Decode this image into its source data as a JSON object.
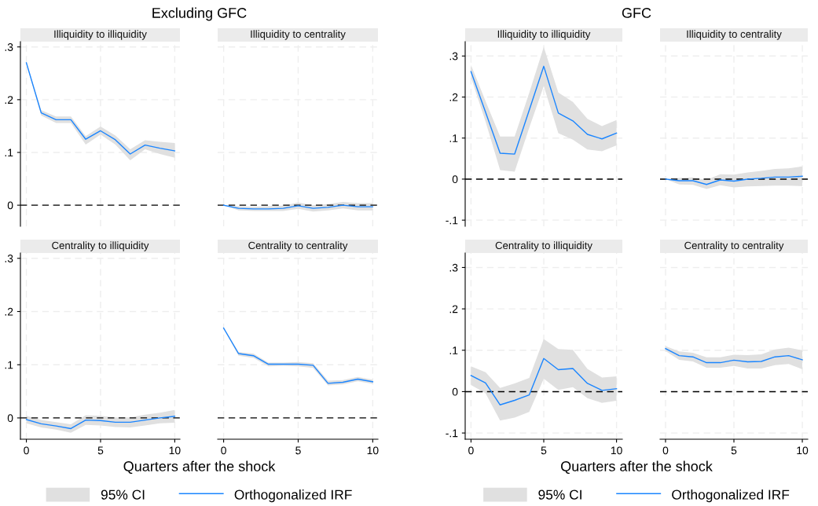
{
  "chart_data": [
    {
      "type": "line",
      "title": "Excluding GFC",
      "subtitle": "Illiquidity to illiquidity",
      "x": [
        0,
        1,
        2,
        3,
        4,
        5,
        6,
        7,
        8,
        9,
        10
      ],
      "xlim": [
        -0.4,
        10.35
      ],
      "xticks": [
        0,
        5,
        10
      ],
      "ylim": [
        -0.04,
        0.31
      ],
      "yticks": [
        {
          "value": 0,
          "label": "0"
        },
        {
          "value": 0.1,
          "label": ".1"
        },
        {
          "value": 0.2,
          "label": ".2"
        },
        {
          "value": 0.3,
          "label": ".3"
        }
      ],
      "tick_labels": "y",
      "grid": true,
      "ref_lines": [
        {
          "axis": "y",
          "value": 0,
          "color": "#000000",
          "line_style": "dashed"
        }
      ],
      "series": [
        {
          "color": "#1a85ff",
          "values": [
            0.27,
            0.175,
            0.162,
            0.162,
            0.125,
            0.141,
            0.124,
            0.097,
            0.114,
            0.108,
            0.103
          ],
          "upper": [
            0.272,
            0.18,
            0.168,
            0.168,
            0.131,
            0.149,
            0.132,
            0.106,
            0.123,
            0.12,
            0.118
          ],
          "lower": [
            0.268,
            0.17,
            0.156,
            0.156,
            0.115,
            0.134,
            0.115,
            0.085,
            0.106,
            0.097,
            0.09
          ]
        }
      ]
    },
    {
      "type": "line",
      "subtitle": "Illiquidity to centrality",
      "x": [
        0,
        1,
        2,
        3,
        4,
        5,
        6,
        7,
        8,
        9,
        10
      ],
      "xlim": [
        -0.4,
        10.35
      ],
      "xticks": [
        0,
        5,
        10
      ],
      "ylim": [
        -0.04,
        0.31
      ],
      "yticks": [
        0,
        0.1,
        0.2,
        0.3
      ],
      "tick_labels": false,
      "grid": true,
      "ref_lines": [
        {
          "axis": "y",
          "value": 0,
          "color": "#000000",
          "line_style": "dashed"
        }
      ],
      "series": [
        {
          "color": "#1a85ff",
          "values": [
            0,
            -0.006,
            -0.007,
            -0.007,
            -0.006,
            -0.001,
            -0.006,
            -0.004,
            0.0,
            -0.003,
            -0.003
          ],
          "upper": [
            0,
            -0.002,
            -0.003,
            -0.002,
            -0.001,
            0.005,
            0.0,
            0.002,
            0.006,
            0.004,
            0.004
          ],
          "lower": [
            0,
            -0.01,
            -0.011,
            -0.011,
            -0.011,
            -0.007,
            -0.012,
            -0.01,
            -0.006,
            -0.01,
            -0.01
          ]
        }
      ]
    },
    {
      "type": "line",
      "subtitle": "Centrality to illiquidity",
      "xlabel": "Quarters after the shock",
      "legend": "bottom",
      "annotations": [
        "95% CI"
      ],
      "x": [
        0,
        1,
        2,
        3,
        4,
        5,
        6,
        7,
        8,
        9,
        10
      ],
      "xlim": [
        -0.4,
        10.35
      ],
      "xticks": [
        0,
        5,
        10
      ],
      "ylim": [
        -0.04,
        0.31
      ],
      "yticks": [
        {
          "value": 0,
          "label": "0"
        },
        {
          "value": 0.1,
          "label": ".1"
        },
        {
          "value": 0.2,
          "label": ".2"
        },
        {
          "value": 0.3,
          "label": ".3"
        }
      ],
      "grid": true,
      "ref_lines": [
        {
          "axis": "y",
          "value": 0,
          "color": "#000000",
          "line_style": "dashed"
        }
      ],
      "series": [
        {
          "name": "Orthogonalized IRF",
          "color": "#1a85ff",
          "values": [
            -0.003,
            -0.011,
            -0.015,
            -0.02,
            -0.004,
            -0.005,
            -0.008,
            -0.008,
            -0.004,
            0.0,
            0.003
          ],
          "upper": [
            0.004,
            -0.004,
            -0.008,
            -0.012,
            0.005,
            0.004,
            0.001,
            0.001,
            0.006,
            0.01,
            0.015
          ],
          "lower": [
            -0.01,
            -0.018,
            -0.022,
            -0.028,
            -0.013,
            -0.014,
            -0.017,
            -0.018,
            -0.014,
            -0.01,
            -0.009
          ]
        }
      ]
    },
    {
      "type": "line",
      "subtitle": "Centrality to centrality",
      "x": [
        0,
        1,
        2,
        3,
        4,
        5,
        6,
        7,
        8,
        9,
        10
      ],
      "xlim": [
        -0.4,
        10.35
      ],
      "xticks": [
        0,
        5,
        10
      ],
      "ylim": [
        -0.04,
        0.31
      ],
      "yticks": [
        0,
        0.1,
        0.2,
        0.3
      ],
      "tick_labels": "x",
      "grid": true,
      "ref_lines": [
        {
          "axis": "y",
          "value": 0,
          "color": "#000000",
          "line_style": "dashed"
        }
      ],
      "series": [
        {
          "color": "#1a85ff",
          "values": [
            0.169,
            0.121,
            0.117,
            0.101,
            0.101,
            0.101,
            0.099,
            0.065,
            0.067,
            0.073,
            0.068
          ],
          "upper": [
            0.17,
            0.124,
            0.121,
            0.104,
            0.104,
            0.105,
            0.103,
            0.07,
            0.071,
            0.077,
            0.072
          ],
          "lower": [
            0.168,
            0.117,
            0.113,
            0.097,
            0.098,
            0.097,
            0.094,
            0.061,
            0.063,
            0.069,
            0.064
          ]
        }
      ]
    },
    {
      "type": "line",
      "title": "GFC",
      "subtitle": "Illiquidity to illiquidity",
      "x": [
        0,
        1,
        2,
        3,
        4,
        5,
        6,
        7,
        8,
        9,
        10
      ],
      "xlim": [
        -0.4,
        10.4
      ],
      "xticks": [
        0,
        5,
        10
      ],
      "ylim": [
        -0.115,
        0.335
      ],
      "yticks": [
        {
          "value": -0.1,
          "label": "-.1"
        },
        {
          "value": 0,
          "label": "0"
        },
        {
          "value": 0.1,
          "label": ".1"
        },
        {
          "value": 0.2,
          "label": ".2"
        },
        {
          "value": 0.3,
          "label": ".3"
        }
      ],
      "tick_labels": "y",
      "grid": true,
      "ref_lines": [
        {
          "axis": "y",
          "value": 0,
          "color": "#000000",
          "line_style": "dashed"
        }
      ],
      "series": [
        {
          "color": "#1a85ff",
          "values": [
            0.262,
            0.163,
            0.063,
            0.061,
            0.168,
            0.275,
            0.161,
            0.142,
            0.109,
            0.098,
            0.112
          ],
          "upper": [
            0.278,
            0.19,
            0.104,
            0.104,
            0.21,
            0.322,
            0.211,
            0.188,
            0.147,
            0.129,
            0.144
          ],
          "lower": [
            0.248,
            0.14,
            0.022,
            0.018,
            0.125,
            0.227,
            0.112,
            0.096,
            0.072,
            0.068,
            0.082
          ]
        }
      ]
    },
    {
      "type": "line",
      "subtitle": "Illiquidity to centrality",
      "x": [
        0,
        1,
        2,
        3,
        4,
        5,
        6,
        7,
        8,
        9,
        10
      ],
      "xlim": [
        -0.4,
        10.4
      ],
      "xticks": [
        0,
        5,
        10
      ],
      "ylim": [
        -0.115,
        0.335
      ],
      "yticks": [
        -0.1,
        0,
        0.1,
        0.2,
        0.3
      ],
      "tick_labels": false,
      "grid": true,
      "ref_lines": [
        {
          "axis": "y",
          "value": 0,
          "color": "#000000",
          "line_style": "dashed"
        }
      ],
      "series": [
        {
          "color": "#1a85ff",
          "values": [
            0,
            -0.004,
            -0.004,
            -0.013,
            -0.002,
            -0.005,
            0.0,
            0.002,
            0.005,
            0.005,
            0.007
          ],
          "upper": [
            0,
            0.003,
            0.004,
            -0.002,
            0.012,
            0.011,
            0.016,
            0.02,
            0.025,
            0.026,
            0.031
          ],
          "lower": [
            0,
            -0.013,
            -0.014,
            -0.024,
            -0.015,
            -0.02,
            -0.018,
            -0.017,
            -0.016,
            -0.016,
            -0.017
          ]
        }
      ]
    },
    {
      "type": "line",
      "subtitle": "Centrality to illiquidity",
      "xlabel": "Quarters after the shock",
      "legend": "bottom",
      "annotations": [
        "95% CI"
      ],
      "x": [
        0,
        1,
        2,
        3,
        4,
        5,
        6,
        7,
        8,
        9,
        10
      ],
      "xlim": [
        -0.4,
        10.4
      ],
      "xticks": [
        0,
        5,
        10
      ],
      "ylim": [
        -0.115,
        0.335
      ],
      "yticks": [
        {
          "value": -0.1,
          "label": "-.1"
        },
        {
          "value": 0,
          "label": "0"
        },
        {
          "value": 0.1,
          "label": ".1"
        },
        {
          "value": 0.2,
          "label": ".2"
        },
        {
          "value": 0.3,
          "label": ".3"
        }
      ],
      "grid": true,
      "ref_lines": [
        {
          "axis": "y",
          "value": 0,
          "color": "#000000",
          "line_style": "dashed"
        }
      ],
      "series": [
        {
          "name": "Orthogonalized IRF",
          "color": "#1a85ff",
          "values": [
            0.039,
            0.021,
            -0.032,
            -0.021,
            -0.008,
            0.08,
            0.053,
            0.056,
            0.02,
            0.003,
            0.007
          ],
          "upper": [
            0.061,
            0.047,
            0.009,
            0.02,
            0.033,
            0.127,
            0.103,
            0.101,
            0.055,
            0.034,
            0.037
          ],
          "lower": [
            0.016,
            -0.004,
            -0.07,
            -0.063,
            -0.049,
            0.031,
            0.004,
            0.011,
            -0.016,
            -0.027,
            -0.022
          ]
        }
      ]
    },
    {
      "type": "line",
      "subtitle": "Centrality to centrality",
      "x": [
        0,
        1,
        2,
        3,
        4,
        5,
        6,
        7,
        8,
        9,
        10
      ],
      "xlim": [
        -0.4,
        10.4
      ],
      "xticks": [
        0,
        5,
        10
      ],
      "ylim": [
        -0.115,
        0.335
      ],
      "yticks": [
        -0.1,
        0,
        0.1,
        0.2,
        0.3
      ],
      "tick_labels": "x",
      "grid": true,
      "ref_lines": [
        {
          "axis": "y",
          "value": 0,
          "color": "#000000",
          "line_style": "dashed"
        }
      ],
      "series": [
        {
          "color": "#1a85ff",
          "values": [
            0.104,
            0.087,
            0.084,
            0.07,
            0.07,
            0.076,
            0.072,
            0.073,
            0.084,
            0.087,
            0.077
          ],
          "upper": [
            0.11,
            0.097,
            0.094,
            0.083,
            0.083,
            0.089,
            0.088,
            0.09,
            0.102,
            0.106,
            0.1
          ],
          "lower": [
            0.098,
            0.077,
            0.073,
            0.058,
            0.058,
            0.062,
            0.056,
            0.056,
            0.064,
            0.067,
            0.054
          ]
        }
      ]
    }
  ]
}
